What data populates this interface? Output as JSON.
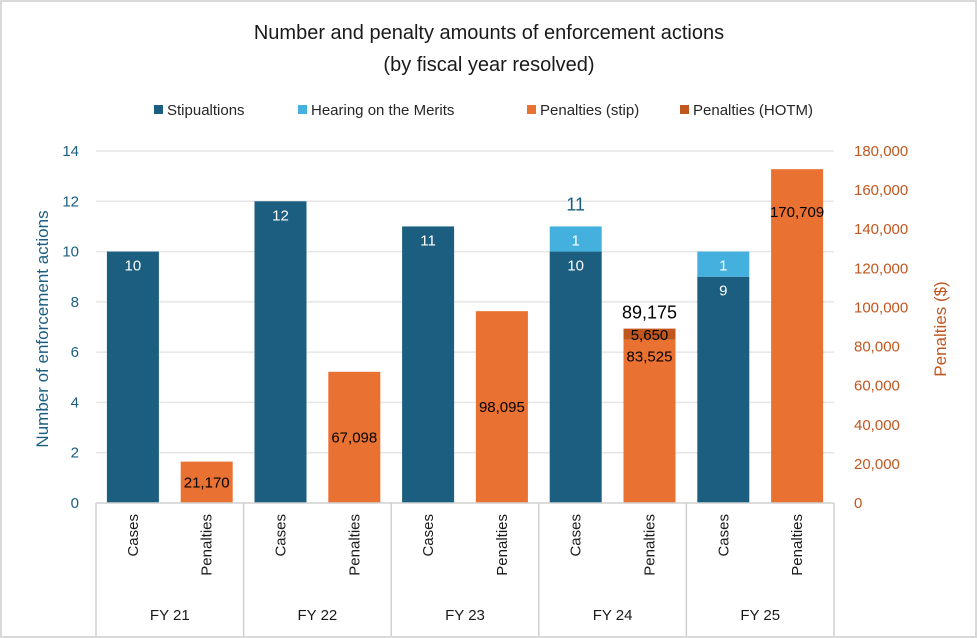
{
  "chart_data": {
    "type": "bar",
    "title": "Number and penalty amounts of enforcement actions",
    "subtitle": "(by fiscal year resolved)",
    "legend": [
      {
        "name": "Stipualtions",
        "color": "#1b5e80"
      },
      {
        "name": "Hearing on the Merits",
        "color": "#44b0de"
      },
      {
        "name": "Penalties (stip)",
        "color": "#e97132"
      },
      {
        "name": "Penalties (HOTM)",
        "color": "#c0571f"
      }
    ],
    "legend_position": "top",
    "groups": [
      "FY 21",
      "FY 22",
      "FY 23",
      "FY 24",
      "FY 25"
    ],
    "subcategories": [
      "Cases",
      "Penalties"
    ],
    "left_axis": {
      "title": "Number of enforcement actions",
      "min": 0,
      "max": 14,
      "step": 2,
      "ticks": [
        "0",
        "2",
        "4",
        "6",
        "8",
        "10",
        "12",
        "14"
      ]
    },
    "right_axis": {
      "title": "Penalties ($)",
      "min": 0,
      "max": 180000,
      "step": 20000,
      "ticks": [
        "0",
        "20,000",
        "40,000",
        "60,000",
        "80,000",
        "100,000",
        "120,000",
        "140,000",
        "160,000",
        "180,000"
      ]
    },
    "grid": true,
    "series": [
      {
        "name": "Stipualtions",
        "axis": "left",
        "subcategory": "Cases",
        "values": [
          10,
          12,
          11,
          10,
          9
        ],
        "labels": [
          "10",
          "12",
          "11",
          "10",
          "9"
        ]
      },
      {
        "name": "Hearing on the Merits",
        "axis": "left",
        "subcategory": "Cases",
        "values": [
          0,
          0,
          0,
          1,
          1
        ],
        "labels": [
          "",
          "",
          "",
          "1",
          "1"
        ]
      },
      {
        "name": "Penalties (stip)",
        "axis": "right",
        "subcategory": "Penalties",
        "values": [
          21170,
          67098,
          98095,
          83525,
          0
        ],
        "labels": [
          "21,170",
          "67,098",
          "98,095",
          "83,525",
          ""
        ]
      },
      {
        "name": "Penalties (HOTM)",
        "axis": "right",
        "subcategory": "Penalties",
        "values": [
          0,
          0,
          0,
          5650,
          170709
        ],
        "labels": [
          "",
          "",
          "",
          "5,650",
          ""
        ]
      }
    ],
    "totals": {
      "cases": [
        "",
        "",
        "",
        "11",
        ""
      ],
      "penalties": [
        "",
        "",
        "",
        "89,175",
        "170,709"
      ]
    }
  }
}
